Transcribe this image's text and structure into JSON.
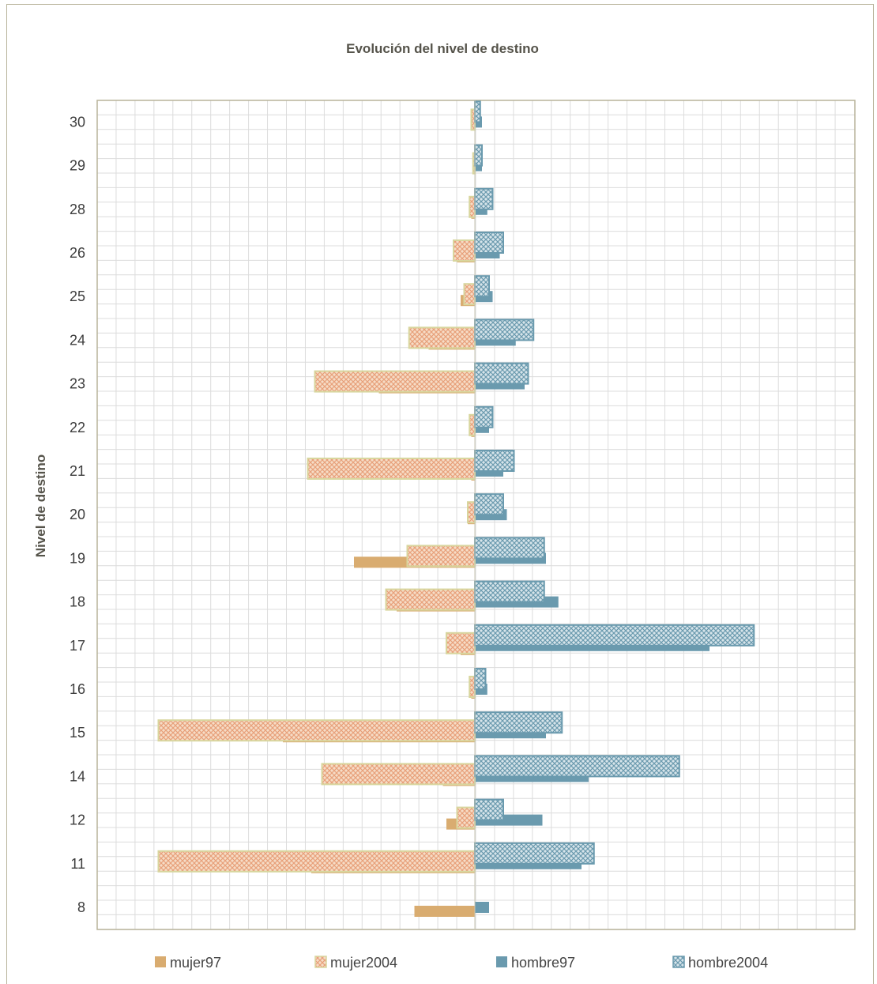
{
  "chart_data": {
    "type": "bar",
    "orientation": "horizontal",
    "title": "Evolución del nivel de destino",
    "xlabel": "",
    "ylabel": "Nivel de destino",
    "categories": [
      "8",
      "11",
      "12",
      "14",
      "15",
      "16",
      "17",
      "18",
      "19",
      "20",
      "21",
      "22",
      "23",
      "24",
      "25",
      "26",
      "28",
      "29",
      "30"
    ],
    "series": [
      {
        "name": "mujer97",
        "values": [
          -17,
          -46,
          -8,
          -9,
          -54,
          -1,
          -4,
          -22,
          -34,
          -2,
          -1,
          -1,
          -27,
          -13,
          -4,
          -5,
          -1,
          0,
          0
        ]
      },
      {
        "name": "mujer2004",
        "values": [
          0,
          -89,
          -5,
          -43,
          -89,
          -1.5,
          -8,
          -25,
          -19,
          -2,
          -47,
          -1.5,
          -45,
          -18.5,
          -3,
          -6,
          -1.5,
          -0.5,
          -1
        ]
      },
      {
        "name": "hombre97",
        "values": [
          4,
          30,
          19,
          32,
          20,
          3.5,
          66,
          23.5,
          20,
          9,
          8,
          4,
          14,
          11.5,
          5,
          7,
          3.5,
          2,
          2
        ]
      },
      {
        "name": "hombre2004",
        "values": [
          0,
          33.5,
          8,
          57.5,
          24.5,
          3,
          78.5,
          19.5,
          19.5,
          8,
          11,
          5,
          15,
          16.5,
          4,
          8,
          5,
          2,
          1.5
        ]
      }
    ],
    "xlim": [
      -100,
      105
    ],
    "grid": true,
    "legend_position": "bottom",
    "colors": {
      "mujer97": "#d9ac70",
      "mujer2004": "#f2c9a8",
      "mujer2004_pattern": "#e8a07a",
      "mujer2004_border": "#d8d69e",
      "hombre97": "#6a9aae",
      "hombre2004": "#6a9aae",
      "hombre2004_pattern": "#bcd3de",
      "grid": "#dcdcdc",
      "axis": "#b8b39a"
    }
  }
}
